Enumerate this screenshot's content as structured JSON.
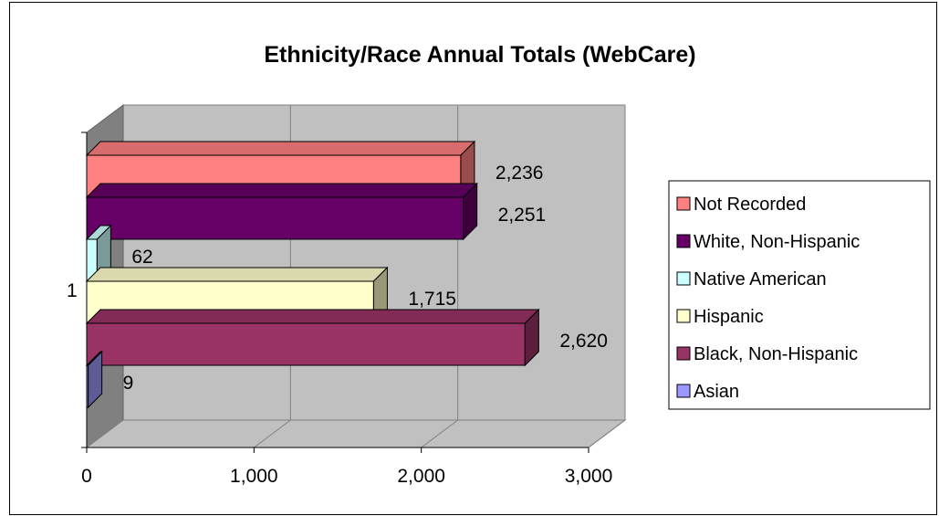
{
  "chart_data": {
    "type": "bar",
    "orientation": "horizontal",
    "style": "3d",
    "title": "Ethnicity/Race Annual Totals (WebCare)",
    "category_label": "1",
    "xlim": [
      0,
      3000
    ],
    "x_ticks": [
      "0",
      "1,000",
      "2,000",
      "3,000"
    ],
    "grid": true,
    "legend_position": "right",
    "series": [
      {
        "name": "Asian",
        "value": 9,
        "label": "9",
        "color": "#9999ff"
      },
      {
        "name": "Black, Non-Hispanic",
        "value": 2620,
        "label": "2,620",
        "color": "#993366"
      },
      {
        "name": "Hispanic",
        "value": 1715,
        "label": "1,715",
        "color": "#ffffcc"
      },
      {
        "name": "Native American",
        "value": 62,
        "label": "62",
        "color": "#ccffff"
      },
      {
        "name": "White, Non-Hispanic",
        "value": 2251,
        "label": "2,251",
        "color": "#660066"
      },
      {
        "name": "Not Recorded",
        "value": 2236,
        "label": "2,236",
        "color": "#ff8080"
      }
    ],
    "legend_order": [
      "Not Recorded",
      "White, Non-Hispanic",
      "Native American",
      "Hispanic",
      "Black, Non-Hispanic",
      "Asian"
    ]
  }
}
